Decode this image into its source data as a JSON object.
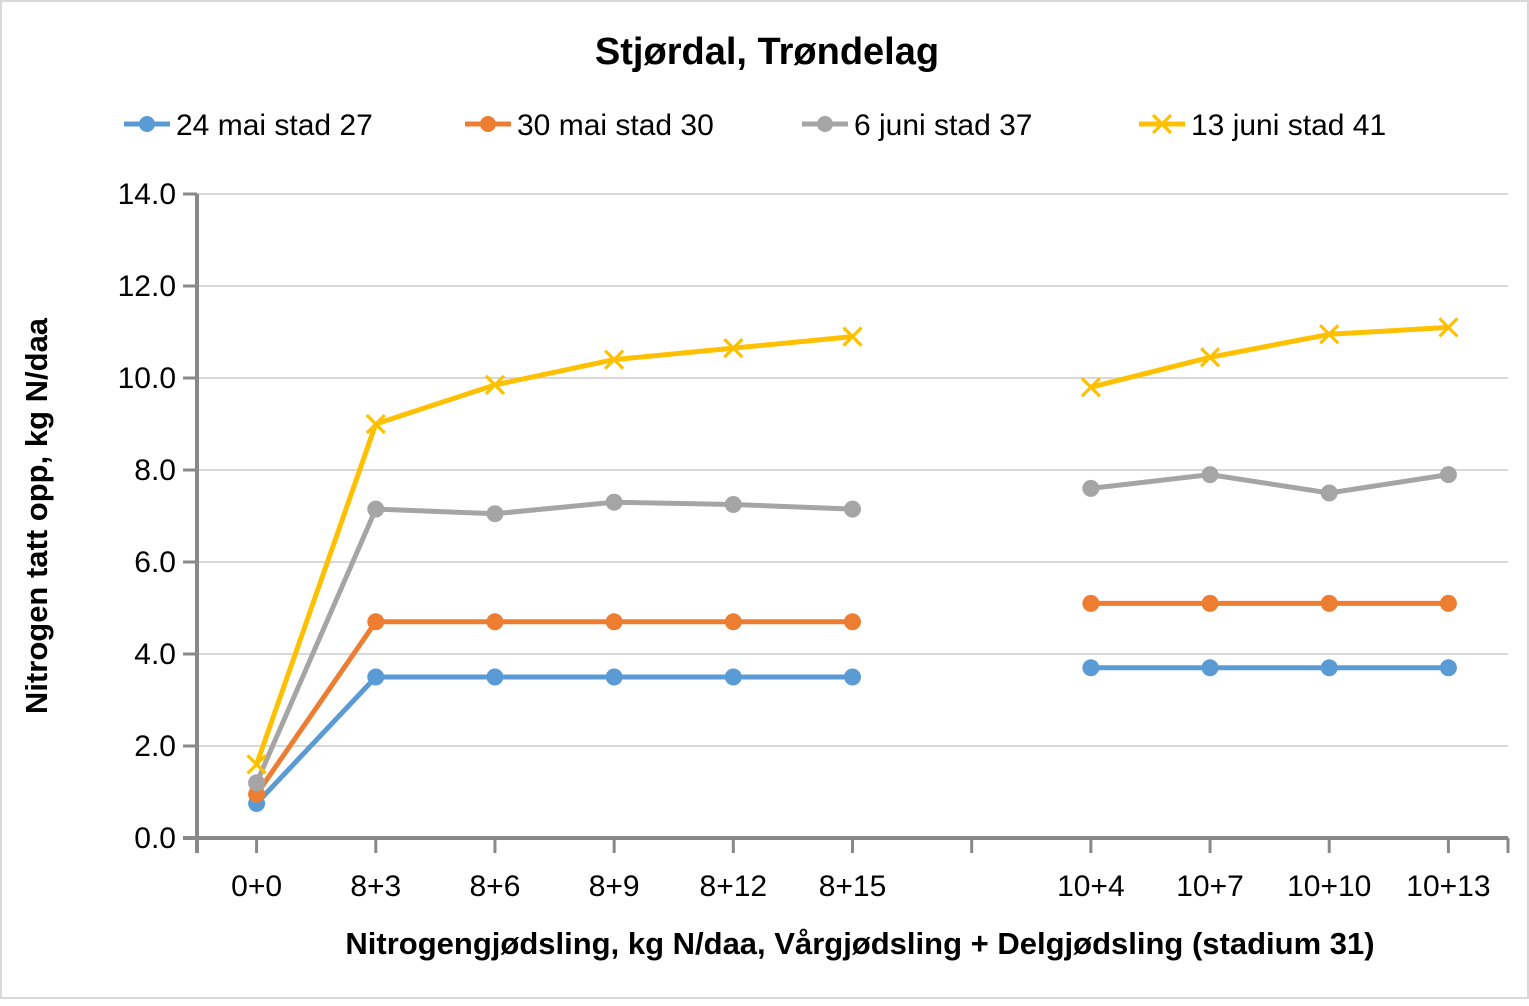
{
  "chart_data": {
    "type": "line",
    "title": "Stjørdal, Trøndelag",
    "xlabel": "Nitrogengjødsling, kg N/daa, Vårgjødsling + Delgjødsling (stadium 31)",
    "ylabel": "Nitrogen tatt opp, kg N/daa",
    "ylim": [
      0,
      14
    ],
    "ytick_step": 2,
    "ytick_labels": [
      "0.0",
      "2.0",
      "4.0",
      "6.0",
      "8.0",
      "10.0",
      "12.0",
      "14.0"
    ],
    "categories": [
      "0+0",
      "8+3",
      "8+6",
      "8+9",
      "8+12",
      "8+15",
      "",
      "10+4",
      "10+7",
      "10+10",
      "10+13"
    ],
    "grid": "horizontal",
    "legend_position": "top",
    "series": [
      {
        "name": "24 mai stad 27",
        "color": "#5B9BD5",
        "marker": "circle",
        "values": [
          0.75,
          3.5,
          3.5,
          3.5,
          3.5,
          3.5,
          null,
          3.7,
          3.7,
          3.7,
          3.7
        ]
      },
      {
        "name": "30 mai stad 30",
        "color": "#ED7D31",
        "marker": "circle",
        "values": [
          0.95,
          4.7,
          4.7,
          4.7,
          4.7,
          4.7,
          null,
          5.1,
          5.1,
          5.1,
          5.1
        ]
      },
      {
        "name": "6 juni stad 37",
        "color": "#A5A5A5",
        "marker": "circle",
        "values": [
          1.2,
          7.15,
          7.05,
          7.3,
          7.25,
          7.15,
          null,
          7.6,
          7.9,
          7.5,
          7.9
        ]
      },
      {
        "name": "13 juni stad 41",
        "color": "#FFC000",
        "marker": "x",
        "values": [
          1.6,
          9.0,
          9.85,
          10.4,
          10.65,
          10.9,
          null,
          9.8,
          10.45,
          10.95,
          11.1
        ]
      }
    ]
  },
  "colors": {
    "axis": "#898989",
    "gridline": "#d9d9d9",
    "text": "#000000",
    "frame_border": "#d9d9d9",
    "background": "#ffffff"
  }
}
